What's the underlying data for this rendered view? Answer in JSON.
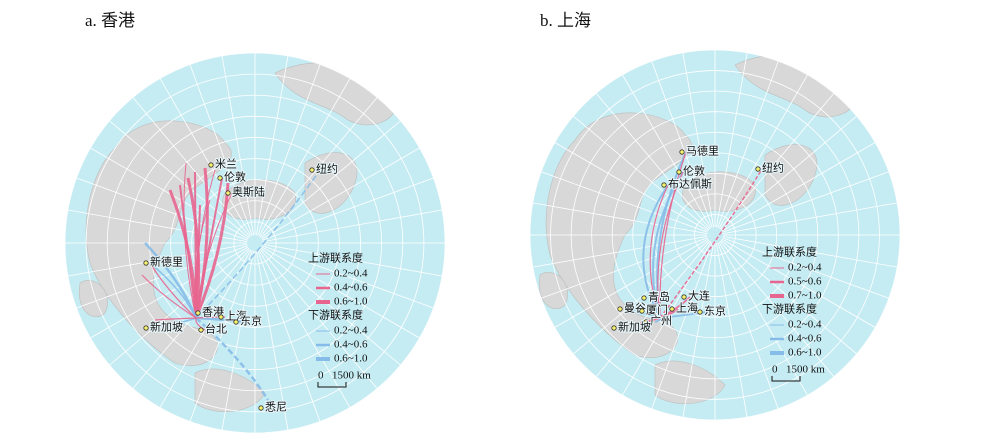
{
  "panels": [
    {
      "title": "a. 香港",
      "cities": [
        "米兰",
        "伦敦",
        "奥斯陆",
        "纽约",
        "新德里",
        "香港",
        "上海",
        "新加坡",
        "台北",
        "东京",
        "悉尼"
      ],
      "legend": {
        "upstream_title": "上游联系度",
        "upstream_items": [
          "0.2~0.4",
          "0.4~0.6",
          "0.6~1.0"
        ],
        "downstream_title": "下游联系度",
        "downstream_items": [
          "0.2~0.4",
          "0.4~0.6",
          "0.6~1.0"
        ]
      },
      "scale": {
        "zero": "0",
        "distance": "1500 km"
      }
    },
    {
      "title": "b. 上海",
      "cities": [
        "马德里",
        "伦敦",
        "布达佩斯",
        "纽约",
        "青岛",
        "大连",
        "曼谷",
        "厦门",
        "广州",
        "上海",
        "东京",
        "新加坡"
      ],
      "legend": {
        "upstream_title": "上游联系度",
        "upstream_items": [
          "0.2~0.4",
          "0.5~0.6",
          "0.7~1.0"
        ],
        "downstream_title": "下游联系度",
        "downstream_items": [
          "0.2~0.4",
          "0.4~0.6",
          "0.6~1.0"
        ]
      },
      "scale": {
        "zero": "0",
        "distance": "1500 km"
      }
    }
  ]
}
